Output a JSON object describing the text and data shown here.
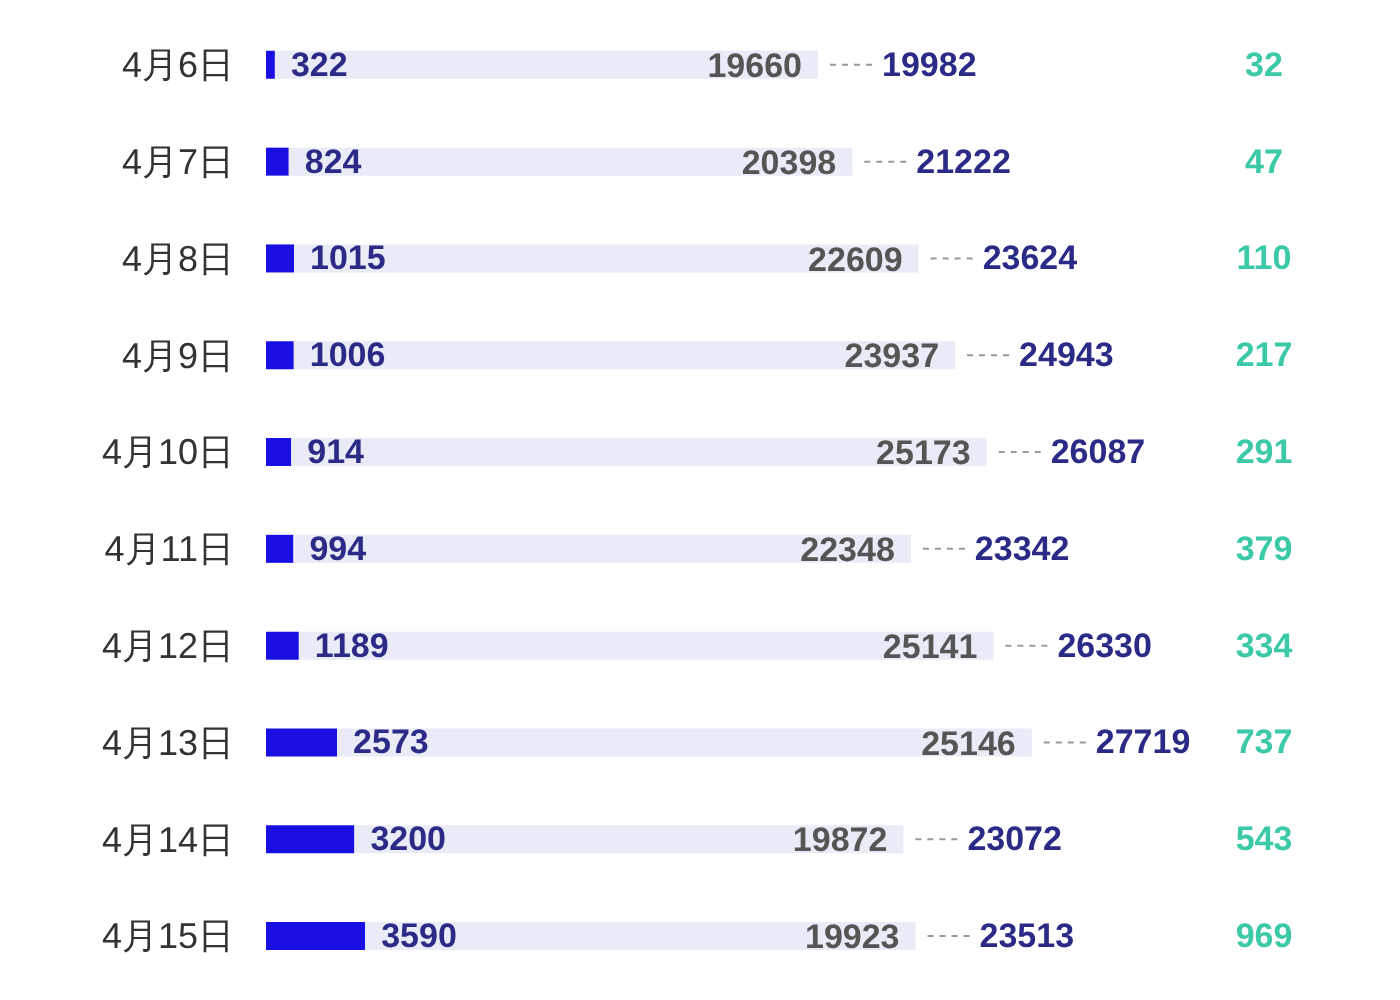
{
  "chart_data": {
    "type": "bar",
    "orientation": "horizontal",
    "stacked": true,
    "data_labels": true,
    "legend": false,
    "grid": false,
    "tick_labels": "y",
    "categories": [
      "4月6日",
      "4月7日",
      "4月8日",
      "4月9日",
      "4月10日",
      "4月11日",
      "4月12日",
      "4月13日",
      "4月14日",
      "4月15日"
    ],
    "series": [
      {
        "color": "#1a0fe3",
        "values": [
          322,
          824,
          1015,
          1006,
          914,
          994,
          1189,
          2573,
          3200,
          3590
        ]
      },
      {
        "color": "#e9ebf7",
        "values": [
          19660,
          20398,
          22609,
          23937,
          25173,
          22348,
          25141,
          25146,
          19872,
          19923
        ]
      }
    ],
    "totals": [
      "19982",
      "21222",
      "23624",
      "24943",
      "26087",
      "23342",
      "26330",
      "27719",
      "23072",
      "23513"
    ],
    "annotations": [
      "32",
      "47",
      "110",
      "217",
      "291",
      "379",
      "334",
      "737",
      "543",
      "969"
    ]
  }
}
